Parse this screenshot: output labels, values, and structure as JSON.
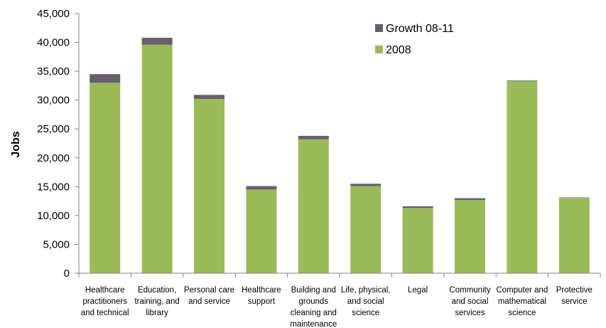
{
  "chart_data": {
    "type": "bar",
    "stacked": true,
    "ylabel": "Jobs",
    "xlabel": "",
    "title": "",
    "ylim": [
      0,
      45000
    ],
    "ytick_step": 5000,
    "ytick_labels": [
      "0",
      "5,000",
      "10,000",
      "15,000",
      "20,000",
      "25,000",
      "30,000",
      "35,000",
      "40,000",
      "45,000"
    ],
    "grid": false,
    "legend_position": "top-right",
    "categories": [
      [
        "Healthcare",
        "practitioners",
        "and technical"
      ],
      [
        "Education,",
        "training, and",
        "library"
      ],
      [
        "Personal care",
        "and service"
      ],
      [
        "Healthcare",
        "support"
      ],
      [
        "Building and",
        "grounds",
        "cleaning and",
        "maintenance"
      ],
      [
        "Life, physical,",
        "and social",
        "science"
      ],
      [
        "Legal"
      ],
      [
        "Community",
        "and social",
        "services"
      ],
      [
        "Computer and",
        "mathematical",
        "science"
      ],
      [
        "Protective",
        "service"
      ]
    ],
    "series": [
      {
        "name": "2008",
        "color": "#9bbb59",
        "values": [
          33000,
          39600,
          30200,
          14500,
          23200,
          15100,
          11300,
          12700,
          33300,
          13100
        ]
      },
      {
        "name": "Growth 08-11",
        "color": "#695e6e",
        "values": [
          1500,
          1200,
          700,
          600,
          600,
          400,
          300,
          300,
          100,
          50
        ]
      }
    ],
    "legend_order": [
      "Growth 08-11",
      "2008"
    ]
  }
}
